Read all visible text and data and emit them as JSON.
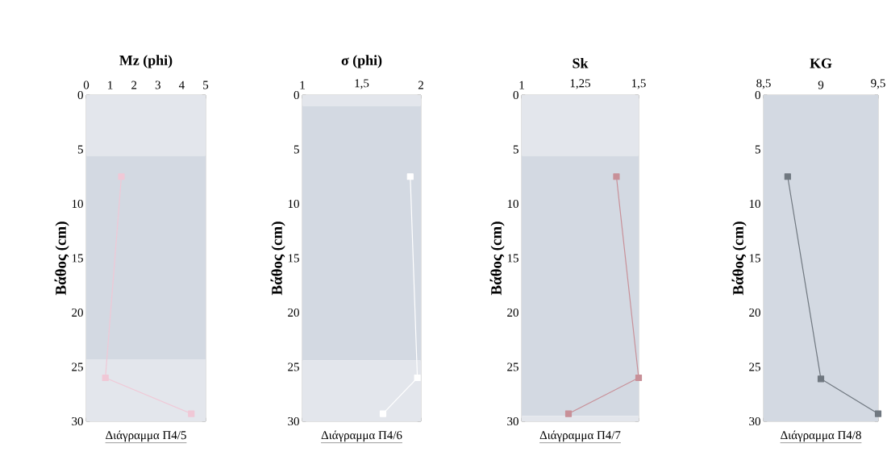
{
  "chart_data": [
    {
      "type": "line",
      "title": "Mz (phi)",
      "ylabel": "Βάθος (cm)",
      "series": [
        {
          "color": "#f0c8d6",
          "x": [
            1.47,
            0.8,
            4.4
          ],
          "values": [
            7.5,
            26,
            29.3
          ]
        }
      ],
      "xlim": [
        0,
        5
      ],
      "xticks": [
        0,
        1,
        2,
        3,
        4,
        5
      ],
      "ylim": [
        30,
        0
      ],
      "yticks": [
        0,
        5,
        10,
        15,
        20,
        25,
        30
      ],
      "marker": "square",
      "line_style": "solid",
      "bands": [
        {
          "axis": "y",
          "from": 0,
          "to": 5.6,
          "color": "#e3e6ec"
        },
        {
          "axis": "y",
          "from": 5.6,
          "to": 24.3,
          "color": "#d3d9e2"
        },
        {
          "axis": "y",
          "from": 24.3,
          "to": 30,
          "color": "#e3e6ec"
        }
      ],
      "annotations": [
        "Διάγραμμα Π4/5"
      ]
    },
    {
      "type": "line",
      "title": "σ (phi)",
      "ylabel": "Βάθος (cm)",
      "series": [
        {
          "color": "#ffffff",
          "x": [
            1.91,
            1.97,
            1.68
          ],
          "values": [
            7.5,
            26,
            29.3
          ]
        }
      ],
      "xlim": [
        1,
        2
      ],
      "xticks": [
        1,
        {
          "value": 1.5,
          "label": "1,5"
        },
        2
      ],
      "ylim": [
        30,
        0
      ],
      "yticks": [
        0,
        5,
        10,
        15,
        20,
        25,
        30
      ],
      "marker": "square",
      "line_style": "solid",
      "bands": [
        {
          "axis": "y",
          "from": 0,
          "to": 1,
          "color": "#e3e6ec"
        },
        {
          "axis": "y",
          "from": 1,
          "to": 24.4,
          "color": "#d3d9e2"
        },
        {
          "axis": "y",
          "from": 24.4,
          "to": 30,
          "color": "#e3e6ec"
        }
      ],
      "annotations": [
        "Διάγραμμα Π4/6"
      ]
    },
    {
      "type": "line",
      "title": "Sk",
      "ylabel": "Βάθος (cm)",
      "series": [
        {
          "color": "#c89098",
          "x": [
            1.405,
            1.5,
            1.2
          ],
          "values": [
            7.5,
            26,
            29.3
          ]
        }
      ],
      "xlim": [
        1,
        1.5
      ],
      "xticks": [
        1,
        {
          "value": 1.25,
          "label": "1,25"
        },
        {
          "value": 1.5,
          "label": "1,5"
        }
      ],
      "ylim": [
        30,
        0
      ],
      "yticks": [
        0,
        5,
        10,
        15,
        20,
        25,
        30
      ],
      "marker": "square",
      "line_style": "solid",
      "bands": [
        {
          "axis": "y",
          "from": 0,
          "to": 5.6,
          "color": "#e3e6ec"
        },
        {
          "axis": "y",
          "from": 5.6,
          "to": 29.5,
          "color": "#d3d9e2"
        },
        {
          "axis": "y",
          "from": 29.5,
          "to": 30,
          "color": "#e3e6ec"
        }
      ],
      "annotations": [
        "Διάγραμμα Π4/7"
      ]
    },
    {
      "type": "line",
      "title": "KG",
      "ylabel": "Βάθος (cm)",
      "series": [
        {
          "color": "#707880",
          "x": [
            8.71,
            9.0,
            9.5
          ],
          "values": [
            7.5,
            26.1,
            29.3
          ]
        }
      ],
      "xlim": [
        8.5,
        9.5
      ],
      "xticks": [
        {
          "value": 8.5,
          "label": "8,5"
        },
        9,
        {
          "value": 9.5,
          "label": "9,5"
        }
      ],
      "ylim": [
        30,
        0
      ],
      "yticks": [
        0,
        5,
        10,
        15,
        20,
        25,
        30
      ],
      "marker": "square",
      "line_style": "solid",
      "bands": [
        {
          "axis": "y",
          "from": 0,
          "to": 30,
          "color": "#d3d9e2"
        }
      ],
      "annotations": [
        "Διάγραμμα Π4/8"
      ]
    }
  ]
}
